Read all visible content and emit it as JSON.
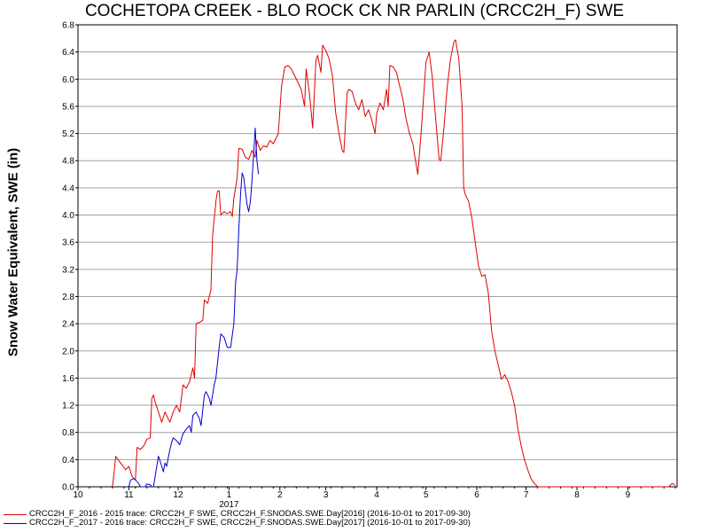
{
  "chart_data": {
    "type": "line",
    "title": "COCHETOPA CREEK - BLO ROCK CK NR PARLIN (CRCC2H_F) SWE",
    "ylabel": "Snow Water Equivalent, SWE (in)",
    "xlabel": "",
    "year_label": "2017",
    "ylim": [
      0,
      6.8
    ],
    "yticks": [
      "0.0",
      "0.4",
      "0.8",
      "1.2",
      "1.6",
      "2.0",
      "2.4",
      "2.8",
      "3.2",
      "3.6",
      "4.0",
      "4.4",
      "4.8",
      "5.2",
      "5.6",
      "6.0",
      "6.4",
      "6.8"
    ],
    "xticks": [
      "10",
      "11",
      "12",
      "1",
      "2",
      "3",
      "4",
      "5",
      "6",
      "7",
      "8",
      "9"
    ],
    "grid": true,
    "legend_position": "bottom",
    "series": [
      {
        "name": "CRCC2H_F_2016 - 2015 trace: CRCC2H_F SWE, CRCC2H_F.SNODAS.SWE.Day[2016] (2016-10-01 to 2017-09-30)",
        "color": "#e00000",
        "points": [
          [
            "2016-10-22",
            0.0
          ],
          [
            "2016-10-23",
            0.2
          ],
          [
            "2016-10-24",
            0.45
          ],
          [
            "2016-10-26",
            0.38
          ],
          [
            "2016-10-28",
            0.32
          ],
          [
            "2016-10-30",
            0.25
          ],
          [
            "2016-11-01",
            0.3
          ],
          [
            "2016-11-03",
            0.15
          ],
          [
            "2016-11-05",
            0.1
          ],
          [
            "2016-11-06",
            0.58
          ],
          [
            "2016-11-08",
            0.55
          ],
          [
            "2016-11-10",
            0.6
          ],
          [
            "2016-11-12",
            0.7
          ],
          [
            "2016-11-14",
            0.72
          ],
          [
            "2016-11-15",
            1.3
          ],
          [
            "2016-11-16",
            1.35
          ],
          [
            "2016-11-17",
            1.25
          ],
          [
            "2016-11-19",
            1.1
          ],
          [
            "2016-11-21",
            0.95
          ],
          [
            "2016-11-23",
            1.1
          ],
          [
            "2016-11-24",
            1.05
          ],
          [
            "2016-11-26",
            0.95
          ],
          [
            "2016-11-28",
            1.1
          ],
          [
            "2016-11-30",
            1.2
          ],
          [
            "2016-12-02",
            1.1
          ],
          [
            "2016-12-04",
            1.5
          ],
          [
            "2016-12-06",
            1.45
          ],
          [
            "2016-12-08",
            1.55
          ],
          [
            "2016-12-10",
            1.75
          ],
          [
            "2016-12-11",
            1.6
          ],
          [
            "2016-12-12",
            2.4
          ],
          [
            "2016-12-14",
            2.42
          ],
          [
            "2016-12-16",
            2.45
          ],
          [
            "2016-12-17",
            2.75
          ],
          [
            "2016-12-19",
            2.7
          ],
          [
            "2016-12-21",
            2.9
          ],
          [
            "2016-12-22",
            3.7
          ],
          [
            "2016-12-24",
            4.2
          ],
          [
            "2016-12-25",
            4.35
          ],
          [
            "2016-12-26",
            4.36
          ],
          [
            "2016-12-27",
            4.0
          ],
          [
            "2016-12-29",
            4.05
          ],
          [
            "2016-12-31",
            4.02
          ],
          [
            "2017-01-02",
            4.05
          ],
          [
            "2017-01-03",
            3.98
          ],
          [
            "2017-01-04",
            4.25
          ],
          [
            "2017-01-06",
            4.55
          ],
          [
            "2017-01-07",
            4.98
          ],
          [
            "2017-01-09",
            4.97
          ],
          [
            "2017-01-11",
            4.85
          ],
          [
            "2017-01-13",
            4.82
          ],
          [
            "2017-01-15",
            4.95
          ],
          [
            "2017-01-17",
            4.85
          ],
          [
            "2017-01-18",
            5.1
          ],
          [
            "2017-01-20",
            4.95
          ],
          [
            "2017-01-22",
            5.02
          ],
          [
            "2017-01-24",
            5.0
          ],
          [
            "2017-01-26",
            5.1
          ],
          [
            "2017-01-28",
            5.05
          ],
          [
            "2017-01-31",
            5.2
          ],
          [
            "2017-02-02",
            5.9
          ],
          [
            "2017-02-04",
            6.18
          ],
          [
            "2017-02-06",
            6.2
          ],
          [
            "2017-02-08",
            6.15
          ],
          [
            "2017-02-10",
            6.05
          ],
          [
            "2017-02-12",
            5.95
          ],
          [
            "2017-02-14",
            5.85
          ],
          [
            "2017-02-16",
            5.6
          ],
          [
            "2017-02-17",
            6.15
          ],
          [
            "2017-02-19",
            5.8
          ],
          [
            "2017-02-21",
            5.28
          ],
          [
            "2017-02-23",
            6.28
          ],
          [
            "2017-02-24",
            6.35
          ],
          [
            "2017-02-26",
            6.1
          ],
          [
            "2017-02-27",
            6.5
          ],
          [
            "2017-03-01",
            6.42
          ],
          [
            "2017-03-03",
            6.3
          ],
          [
            "2017-03-05",
            6.05
          ],
          [
            "2017-03-07",
            5.5
          ],
          [
            "2017-03-09",
            5.2
          ],
          [
            "2017-03-11",
            4.95
          ],
          [
            "2017-03-12",
            4.92
          ],
          [
            "2017-03-14",
            5.8
          ],
          [
            "2017-03-15",
            5.85
          ],
          [
            "2017-03-17",
            5.82
          ],
          [
            "2017-03-19",
            5.65
          ],
          [
            "2017-03-21",
            5.55
          ],
          [
            "2017-03-23",
            5.7
          ],
          [
            "2017-03-25",
            5.45
          ],
          [
            "2017-03-27",
            5.55
          ],
          [
            "2017-03-29",
            5.4
          ],
          [
            "2017-03-31",
            5.2
          ],
          [
            "2017-04-01",
            5.5
          ],
          [
            "2017-04-03",
            5.65
          ],
          [
            "2017-04-05",
            5.55
          ],
          [
            "2017-04-07",
            5.85
          ],
          [
            "2017-04-08",
            5.6
          ],
          [
            "2017-04-09",
            6.2
          ],
          [
            "2017-04-11",
            6.18
          ],
          [
            "2017-04-13",
            6.1
          ],
          [
            "2017-04-15",
            5.9
          ],
          [
            "2017-04-17",
            5.7
          ],
          [
            "2017-04-19",
            5.4
          ],
          [
            "2017-04-21",
            5.2
          ],
          [
            "2017-04-23",
            5.05
          ],
          [
            "2017-04-25",
            4.75
          ],
          [
            "2017-04-26",
            4.6
          ],
          [
            "2017-04-28",
            5.2
          ],
          [
            "2017-04-30",
            5.9
          ],
          [
            "2017-05-01",
            6.25
          ],
          [
            "2017-05-03",
            6.4
          ],
          [
            "2017-05-05",
            6.0
          ],
          [
            "2017-05-07",
            5.4
          ],
          [
            "2017-05-09",
            4.82
          ],
          [
            "2017-05-10",
            4.8
          ],
          [
            "2017-05-12",
            5.3
          ],
          [
            "2017-05-14",
            5.9
          ],
          [
            "2017-05-16",
            6.3
          ],
          [
            "2017-05-18",
            6.55
          ],
          [
            "2017-05-19",
            6.58
          ],
          [
            "2017-05-21",
            6.3
          ],
          [
            "2017-05-23",
            5.6
          ],
          [
            "2017-05-24",
            4.4
          ],
          [
            "2017-05-25",
            4.3
          ],
          [
            "2017-05-27",
            4.2
          ],
          [
            "2017-05-29",
            3.95
          ],
          [
            "2017-05-31",
            3.6
          ],
          [
            "2017-06-02",
            3.25
          ],
          [
            "2017-06-04",
            3.1
          ],
          [
            "2017-06-06",
            3.12
          ],
          [
            "2017-06-08",
            2.85
          ],
          [
            "2017-06-10",
            2.3
          ],
          [
            "2017-06-12",
            2.0
          ],
          [
            "2017-06-14",
            1.8
          ],
          [
            "2017-06-16",
            1.58
          ],
          [
            "2017-06-18",
            1.65
          ],
          [
            "2017-06-20",
            1.55
          ],
          [
            "2017-06-22",
            1.4
          ],
          [
            "2017-06-24",
            1.2
          ],
          [
            "2017-06-26",
            0.85
          ],
          [
            "2017-06-28",
            0.6
          ],
          [
            "2017-06-30",
            0.4
          ],
          [
            "2017-07-02",
            0.25
          ],
          [
            "2017-07-04",
            0.12
          ],
          [
            "2017-07-06",
            0.05
          ],
          [
            "2017-07-08",
            0.0
          ],
          [
            "2017-09-26",
            0.0
          ],
          [
            "2017-09-28",
            0.05
          ],
          [
            "2017-09-30",
            0.02
          ]
        ]
      },
      {
        "name": "CRCC2H_F_2017 - 2016 trace: CRCC2H_F SWE, CRCC2H_F.SNODAS.SWE.Day[2017] (2016-10-01 to 2017-09-30)",
        "color": "#0000d0",
        "points": [
          [
            "2016-11-01",
            0.0
          ],
          [
            "2016-11-02",
            0.1
          ],
          [
            "2016-11-04",
            0.12
          ],
          [
            "2016-11-05",
            0.1
          ],
          [
            "2016-11-07",
            0.05
          ],
          [
            "2016-11-08",
            0.0
          ],
          [
            "2016-11-11",
            0.0
          ],
          [
            "2016-11-12",
            0.04
          ],
          [
            "2016-11-14",
            0.03
          ],
          [
            "2016-11-15",
            0.0
          ],
          [
            "2016-11-16",
            0.0
          ],
          [
            "2016-11-18",
            0.3
          ],
          [
            "2016-11-19",
            0.45
          ],
          [
            "2016-11-20",
            0.38
          ],
          [
            "2016-11-21",
            0.3
          ],
          [
            "2016-11-22",
            0.22
          ],
          [
            "2016-11-23",
            0.35
          ],
          [
            "2016-11-24",
            0.3
          ],
          [
            "2016-11-26",
            0.55
          ],
          [
            "2016-11-27",
            0.65
          ],
          [
            "2016-11-28",
            0.72
          ],
          [
            "2016-11-30",
            0.68
          ],
          [
            "2016-12-02",
            0.62
          ],
          [
            "2016-12-04",
            0.78
          ],
          [
            "2016-12-06",
            0.85
          ],
          [
            "2016-12-08",
            0.9
          ],
          [
            "2016-12-09",
            0.8
          ],
          [
            "2016-12-10",
            1.05
          ],
          [
            "2016-12-12",
            1.1
          ],
          [
            "2016-12-14",
            1.0
          ],
          [
            "2016-12-15",
            0.9
          ],
          [
            "2016-12-17",
            1.35
          ],
          [
            "2016-12-18",
            1.4
          ],
          [
            "2016-12-20",
            1.3
          ],
          [
            "2016-12-21",
            1.2
          ],
          [
            "2016-12-23",
            1.5
          ],
          [
            "2016-12-24",
            1.6
          ],
          [
            "2016-12-26",
            2.05
          ],
          [
            "2016-12-27",
            2.25
          ],
          [
            "2016-12-29",
            2.2
          ],
          [
            "2016-12-31",
            2.05
          ],
          [
            "2017-01-02",
            2.05
          ],
          [
            "2017-01-04",
            2.4
          ],
          [
            "2017-01-05",
            3.0
          ],
          [
            "2017-01-06",
            3.2
          ],
          [
            "2017-01-07",
            3.8
          ],
          [
            "2017-01-08",
            4.3
          ],
          [
            "2017-01-09",
            4.62
          ],
          [
            "2017-01-10",
            4.55
          ],
          [
            "2017-01-11",
            4.35
          ],
          [
            "2017-01-12",
            4.15
          ],
          [
            "2017-01-13",
            4.05
          ],
          [
            "2017-01-14",
            4.2
          ],
          [
            "2017-01-15",
            4.5
          ],
          [
            "2017-01-16",
            4.9
          ],
          [
            "2017-01-17",
            5.28
          ],
          [
            "2017-01-18",
            4.8
          ],
          [
            "2017-01-19",
            4.6
          ]
        ]
      }
    ]
  }
}
